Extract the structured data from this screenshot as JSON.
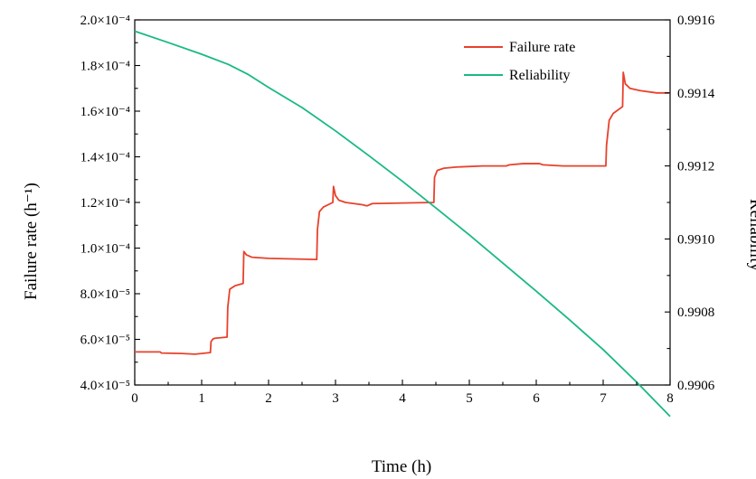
{
  "chart_data": {
    "type": "line",
    "xlabel": "Time (h)",
    "ylabel_left": "Failure rate (h⁻¹)",
    "ylabel_right": "Reliability",
    "xlim": [
      0,
      8
    ],
    "ylim_left": [
      4e-05,
      0.0002
    ],
    "ylim_right": [
      0.9906,
      0.9916
    ],
    "x_ticks": [
      0,
      1,
      2,
      3,
      4,
      5,
      6,
      7,
      8
    ],
    "y_left_ticks": [
      {
        "value": 4e-05,
        "label": "4.0×10⁻⁵"
      },
      {
        "value": 6e-05,
        "label": "6.0×10⁻⁵"
      },
      {
        "value": 8e-05,
        "label": "8.0×10⁻⁵"
      },
      {
        "value": 0.0001,
        "label": "1.0×10⁻⁴"
      },
      {
        "value": 0.00012,
        "label": "1.2×10⁻⁴"
      },
      {
        "value": 0.00014,
        "label": "1.4×10⁻⁴"
      },
      {
        "value": 0.00016,
        "label": "1.6×10⁻⁴"
      },
      {
        "value": 0.00018,
        "label": "1.8×10⁻⁴"
      },
      {
        "value": 0.0002,
        "label": "2.0×10⁻⁴"
      }
    ],
    "y_right_ticks": [
      {
        "value": 0.9906,
        "label": "0.9906"
      },
      {
        "value": 0.9908,
        "label": "0.9908"
      },
      {
        "value": 0.991,
        "label": "0.9910"
      },
      {
        "value": 0.9912,
        "label": "0.9912"
      },
      {
        "value": 0.9914,
        "label": "0.9914"
      },
      {
        "value": 0.9916,
        "label": "0.9916"
      }
    ],
    "legend_position": "top-right",
    "grid": false,
    "series": [
      {
        "name": "Failure rate",
        "axis": "left",
        "color": "#e8412c",
        "x": [
          0,
          0.38,
          0.4,
          0.7,
          0.9,
          1.13,
          1.14,
          1.17,
          1.2,
          1.38,
          1.39,
          1.42,
          1.5,
          1.62,
          1.63,
          1.67,
          1.75,
          2.0,
          2.72,
          2.73,
          2.76,
          2.82,
          2.96,
          2.97,
          3.0,
          3.05,
          3.15,
          3.4,
          3.47,
          3.55,
          4.47,
          4.48,
          4.52,
          4.62,
          4.8,
          5.2,
          5.55,
          5.6,
          5.8,
          6.05,
          6.1,
          6.4,
          7.04,
          7.05,
          7.09,
          7.15,
          7.29,
          7.3,
          7.33,
          7.4,
          7.55,
          7.8,
          8.0
        ],
        "y": [
          5.45e-05,
          5.45e-05,
          5.4e-05,
          5.38e-05,
          5.35e-05,
          5.42e-05,
          5.9e-05,
          6.02e-05,
          6.05e-05,
          6.1e-05,
          7.4e-05,
          8.2e-05,
          8.35e-05,
          8.45e-05,
          9.85e-05,
          9.7e-05,
          9.6e-05,
          9.55e-05,
          9.5e-05,
          0.000108,
          0.000116,
          0.000118,
          0.00012,
          0.000127,
          0.000123,
          0.000121,
          0.00012,
          0.000119,
          0.0001185,
          0.0001195,
          0.00012,
          0.000131,
          0.000134,
          0.000135,
          0.0001355,
          0.000136,
          0.000136,
          0.0001365,
          0.000137,
          0.000137,
          0.0001365,
          0.000136,
          0.000136,
          0.000145,
          0.000156,
          0.000159,
          0.000162,
          0.000177,
          0.000172,
          0.00017,
          0.000169,
          0.000168,
          0.000168
        ]
      },
      {
        "name": "Reliability",
        "axis": "right",
        "color": "#1ab887",
        "x": [
          0,
          0.5,
          1.0,
          1.4,
          1.7,
          2.0,
          2.5,
          3.0,
          3.5,
          4.0,
          4.5,
          5.0,
          5.5,
          6.0,
          6.5,
          7.0,
          7.5,
          8.0
        ],
        "y": [
          0.991569,
          0.991538,
          0.991506,
          0.991478,
          0.99145,
          0.991415,
          0.99136,
          0.991296,
          0.991228,
          0.991158,
          0.991085,
          0.991011,
          0.990934,
          0.990857,
          0.990778,
          0.990697,
          0.990608,
          0.990514
        ]
      }
    ]
  }
}
